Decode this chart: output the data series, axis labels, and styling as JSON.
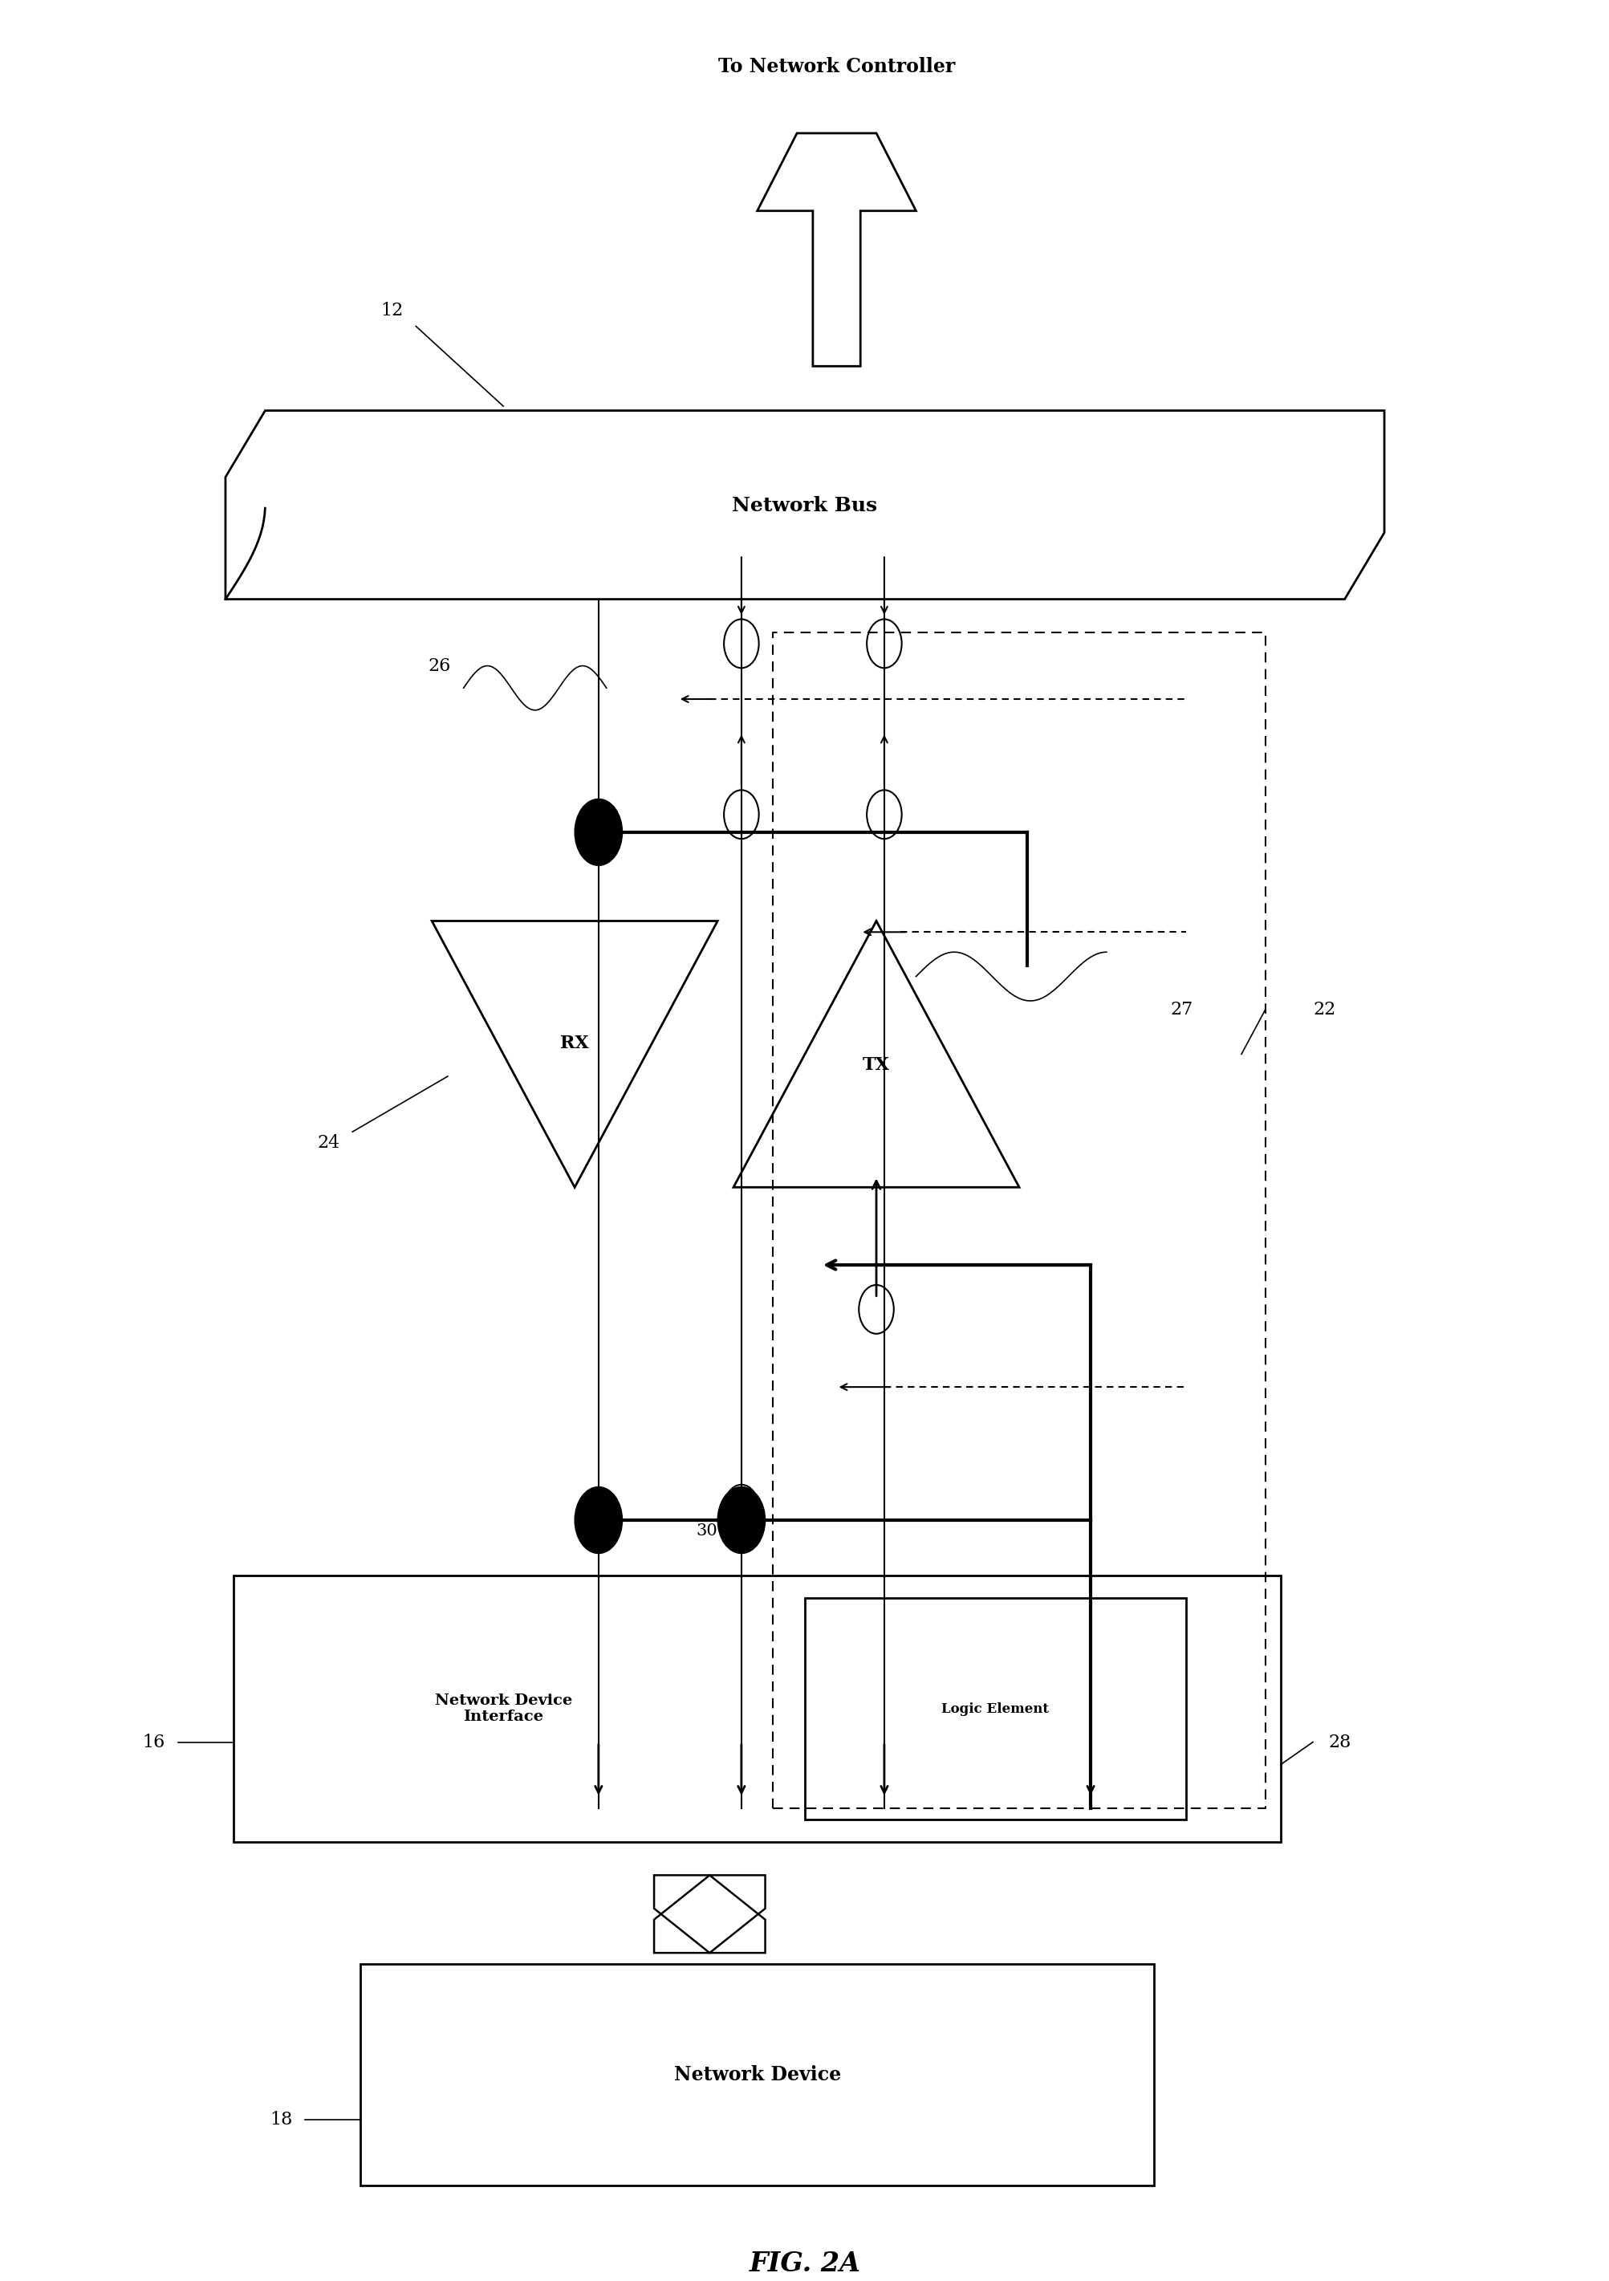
{
  "title": "FIG. 2A",
  "bg_color": "#ffffff",
  "fig_width": 20.06,
  "fig_height": 28.42,
  "labels": {
    "network_controller": "To Network Controller",
    "network_bus": "Network Bus",
    "network_device_interface": "Network Device\nInterface",
    "logic_element": "Logic Element",
    "network_device": "Network Device",
    "rx": "RX",
    "tx": "TX"
  },
  "ref_numbers": {
    "n12": "12",
    "n16": "16",
    "n18": "18",
    "n22": "22",
    "n24": "24",
    "n26": "26",
    "n27": "27",
    "n28": "28",
    "n30": "30"
  }
}
